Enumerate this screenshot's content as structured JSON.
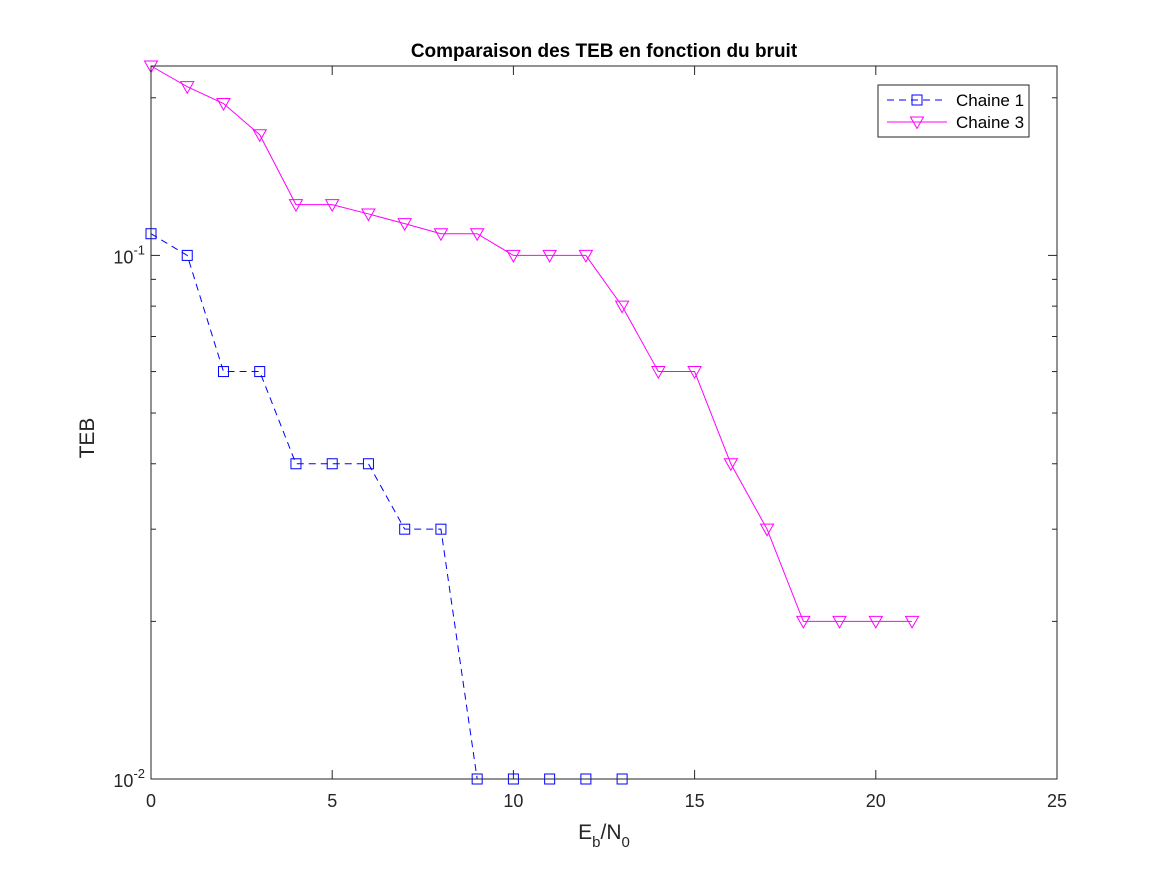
{
  "chart_data": {
    "type": "line",
    "title": "Comparaison des TEB en fonction du bruit",
    "xlabel": {
      "main": "E",
      "sub1": "b",
      "sep": "/N",
      "sub2": "0"
    },
    "ylabel": "TEB",
    "xlim": [
      0,
      25
    ],
    "ylim": [
      0.01,
      0.23
    ],
    "yscale": "log",
    "x_ticks": [
      0,
      5,
      10,
      15,
      20,
      25
    ],
    "x_tick_labels": [
      "0",
      "5",
      "10",
      "15",
      "20",
      "25"
    ],
    "y_major_ticks": [
      {
        "value": 0.01,
        "base": "10",
        "exp": "-2"
      },
      {
        "value": 0.1,
        "base": "10",
        "exp": "-1"
      }
    ],
    "y_minor_ticks": [
      0.02,
      0.03,
      0.04,
      0.05,
      0.06,
      0.07,
      0.08,
      0.09,
      0.2
    ],
    "grid": false,
    "legend_position": "top-right",
    "series": [
      {
        "name": "Chaine 1",
        "color": "#0000ff",
        "line_style": "dashed",
        "marker": "square",
        "x": [
          0,
          1,
          2,
          3,
          4,
          5,
          6,
          7,
          8,
          9,
          10,
          11,
          12,
          13
        ],
        "y": [
          0.11,
          0.1,
          0.06,
          0.06,
          0.04,
          0.04,
          0.04,
          0.03,
          0.03,
          0.01,
          0.01,
          0.01,
          0.01,
          0.01
        ]
      },
      {
        "name": "Chaine 3",
        "color": "#ff00ff",
        "line_style": "solid",
        "marker": "triangle-down",
        "x": [
          0,
          1,
          2,
          3,
          4,
          5,
          6,
          7,
          8,
          9,
          10,
          11,
          12,
          13,
          14,
          15,
          16,
          17,
          18,
          19,
          20,
          21
        ],
        "y": [
          0.23,
          0.21,
          0.195,
          0.17,
          0.125,
          0.125,
          0.12,
          0.115,
          0.11,
          0.11,
          0.1,
          0.1,
          0.1,
          0.08,
          0.06,
          0.06,
          0.04,
          0.03,
          0.02,
          0.02,
          0.02,
          0.02
        ]
      }
    ]
  }
}
